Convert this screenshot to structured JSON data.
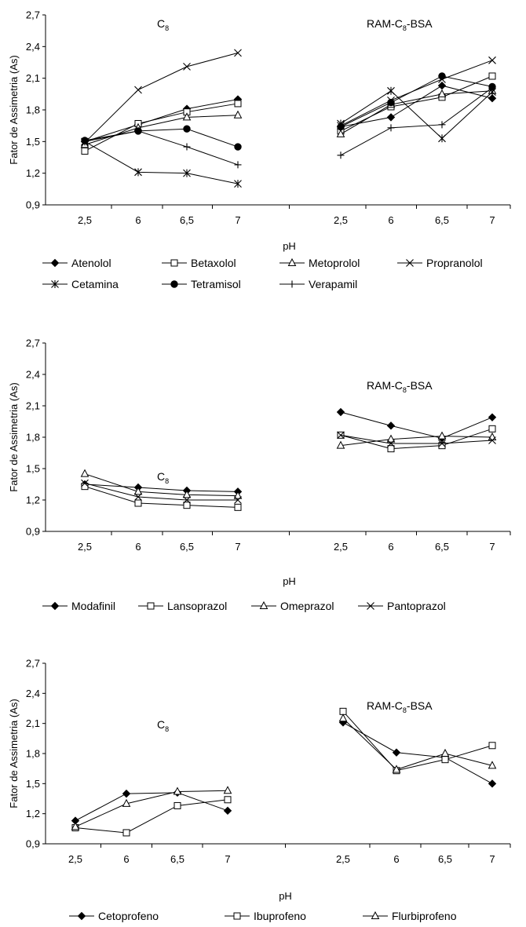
{
  "chart_data": [
    {
      "type": "line",
      "ylabel": "Fator de Assimetria (As)",
      "xlabel": "pH",
      "ylim": [
        0.9,
        2.7
      ],
      "yticks": [
        "0,9",
        "1,2",
        "1,5",
        "1,8",
        "2,1",
        "2,4",
        "2,7"
      ],
      "groups": [
        {
          "label": "C",
          "label_sub": "8",
          "categories": [
            "2,5",
            "6",
            "6,5",
            "7"
          ]
        },
        {
          "label": "RAM-C",
          "label_sub": "8",
          "label_tail": "-BSA",
          "categories": [
            "2,5",
            "6",
            "6,5",
            "7"
          ]
        }
      ],
      "series": [
        {
          "name": "Atenolol",
          "marker": "diamond-filled",
          "values": [
            [
              1.5,
              1.66,
              1.81,
              1.9
            ],
            [
              1.64,
              1.73,
              2.03,
              1.91
            ]
          ]
        },
        {
          "name": "Betaxolol",
          "marker": "square-open",
          "values": [
            [
              1.41,
              1.67,
              1.78,
              1.86
            ],
            [
              1.6,
              1.83,
              1.92,
              2.12
            ]
          ]
        },
        {
          "name": "Metoprolol",
          "marker": "triangle-open",
          "values": [
            [
              1.47,
              1.63,
              1.73,
              1.75
            ],
            [
              1.57,
              1.85,
              1.95,
              1.98
            ]
          ]
        },
        {
          "name": "Propranolol",
          "marker": "x",
          "values": [
            [
              1.49,
              1.99,
              2.21,
              2.34
            ],
            [
              1.65,
              1.89,
              2.09,
              2.27
            ]
          ]
        },
        {
          "name": "Cetamina",
          "marker": "star",
          "values": [
            [
              1.5,
              1.21,
              1.2,
              1.1
            ],
            [
              1.67,
              1.98,
              1.53,
              1.97
            ]
          ]
        },
        {
          "name": "Tetramisol",
          "marker": "circle-filled",
          "values": [
            [
              1.51,
              1.6,
              1.62,
              1.45
            ],
            [
              1.64,
              1.87,
              2.12,
              2.02
            ]
          ]
        },
        {
          "name": "Verapamil",
          "marker": "plus",
          "values": [
            [
              1.5,
              1.6,
              1.45,
              1.28
            ],
            [
              1.37,
              1.63,
              1.66,
              2.01
            ]
          ]
        }
      ]
    },
    {
      "type": "line",
      "ylabel": "Fator de Assimetria (As)",
      "xlabel": "pH",
      "ylim": [
        0.9,
        2.7
      ],
      "yticks": [
        "0,9",
        "1,2",
        "1,5",
        "1,8",
        "2,1",
        "2,4",
        "2,7"
      ],
      "groups": [
        {
          "label": "C",
          "label_sub": "8",
          "categories": [
            "2,5",
            "6",
            "6,5",
            "7"
          ]
        },
        {
          "label": "RAM-C",
          "label_sub": "8",
          "label_tail": "-BSA",
          "categories": [
            "2,5",
            "6",
            "6,5",
            "7"
          ]
        }
      ],
      "series": [
        {
          "name": "Modafinil",
          "marker": "diamond-filled",
          "values": [
            [
              1.35,
              1.32,
              1.29,
              1.28
            ],
            [
              2.04,
              1.91,
              1.79,
              1.99
            ]
          ]
        },
        {
          "name": "Lansoprazol",
          "marker": "square-open",
          "values": [
            [
              1.33,
              1.17,
              1.15,
              1.13
            ],
            [
              1.82,
              1.69,
              1.72,
              1.88
            ]
          ]
        },
        {
          "name": "Omeprazol",
          "marker": "triangle-open",
          "values": [
            [
              1.45,
              1.28,
              1.25,
              1.24
            ],
            [
              1.72,
              1.78,
              1.81,
              1.8
            ]
          ]
        },
        {
          "name": "Pantoprazol",
          "marker": "x",
          "values": [
            [
              1.36,
              1.23,
              1.2,
              1.2
            ],
            [
              1.82,
              1.74,
              1.74,
              1.77
            ]
          ]
        }
      ]
    },
    {
      "type": "line",
      "ylabel": "Fator de Assimetria (As)",
      "xlabel": "pH",
      "ylim": [
        0.9,
        2.7
      ],
      "yticks": [
        "0,9",
        "1,2",
        "1,5",
        "1,8",
        "2,1",
        "2,4",
        "2,7"
      ],
      "groups": [
        {
          "label": "C",
          "label_sub": "8",
          "categories": [
            "2,5",
            "6",
            "6,5",
            "7"
          ]
        },
        {
          "label": "RAM-C",
          "label_sub": "8",
          "label_tail": "-BSA",
          "categories": [
            "2,5",
            "6",
            "6,5",
            "7"
          ]
        }
      ],
      "series": [
        {
          "name": "Cetoprofeno",
          "marker": "diamond-filled",
          "values": [
            [
              1.13,
              1.4,
              1.41,
              1.23
            ],
            [
              2.11,
              1.81,
              1.76,
              1.5
            ]
          ]
        },
        {
          "name": "Ibuprofeno",
          "marker": "square-open",
          "values": [
            [
              1.06,
              1.01,
              1.28,
              1.34
            ],
            [
              2.22,
              1.63,
              1.74,
              1.88
            ]
          ]
        },
        {
          "name": "Flurbiprofeno",
          "marker": "triangle-open",
          "values": [
            [
              1.07,
              1.3,
              1.42,
              1.43
            ],
            [
              2.15,
              1.64,
              1.8,
              1.68
            ]
          ]
        }
      ]
    }
  ]
}
